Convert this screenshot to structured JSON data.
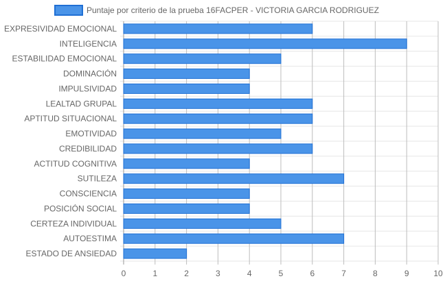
{
  "chart_data": {
    "type": "bar",
    "orientation": "horizontal",
    "categories": [
      "EXPRESIVIDAD EMOCIONAL",
      "INTELIGENCIA",
      "ESTABILIDAD EMOCIONAL",
      "DOMINACIÓN",
      "IMPULSIVIDAD",
      "LEALTAD GRUPAL",
      "APTITUD SITUACIONAL",
      "EMOTIVIDAD",
      "CREDIBILIDAD",
      "ACTITUD COGNITIVA",
      "SUTILEZA",
      "CONSCIENCIA",
      "POSICIÓN SOCIAL",
      "CERTEZA INDIVIDUAL",
      "AUTOESTIMA",
      "ESTADO DE ANSIEDAD"
    ],
    "series": [
      {
        "name": "Puntaje por criterio de la prueba 16FACPER - VICTORIA GARCIA RODRIGUEZ",
        "values": [
          6,
          9,
          5,
          4,
          4,
          6,
          6,
          5,
          6,
          4,
          7,
          4,
          4,
          5,
          7,
          2
        ],
        "color": "#4a94e8",
        "border_color": "#1f6fd4"
      }
    ],
    "xlim": [
      0,
      10
    ],
    "xticks": [
      "0",
      "1",
      "2",
      "3",
      "4",
      "5",
      "6",
      "7",
      "8",
      "9",
      "10"
    ],
    "grid": true,
    "legend_position": "top"
  }
}
